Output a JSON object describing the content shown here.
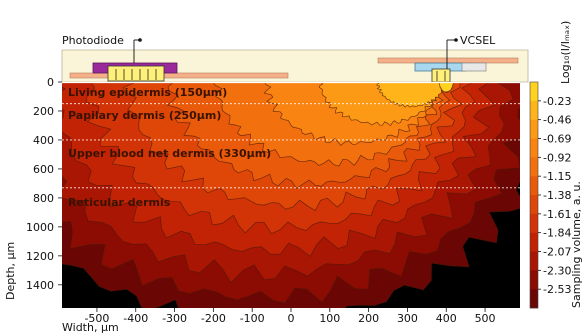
{
  "figure": {
    "device_labels": {
      "photodiode": "Photodiode",
      "vcsel": "VCSEL"
    },
    "layers": [
      {
        "name": "Living epidermis (150µm)",
        "depth_um": 150
      },
      {
        "name": "Papilary dermis (250µm)",
        "depth_um": 400
      },
      {
        "name": "Upper blood net dermis (330µm)",
        "depth_um": 730
      },
      {
        "name": "Reticular dermis",
        "depth_um": null
      }
    ]
  },
  "chart_data": {
    "type": "heatmap",
    "xlabel": "Width, µm",
    "ylabel": "Depth, µm",
    "xlim": [
      -590,
      590
    ],
    "ylim": [
      0,
      1560
    ],
    "x_ticks": [
      -500,
      -400,
      -300,
      -200,
      -100,
      0,
      100,
      200,
      300,
      400,
      500
    ],
    "y_ticks": [
      0,
      200,
      400,
      600,
      800,
      1000,
      1200,
      1400
    ],
    "colorbar": {
      "title": "Log₁₀(I/Iₘₐₓ)",
      "label": "Sampling volume, a. u.",
      "ticks": [
        "-0.23",
        "-0.46",
        "-0.69",
        "-0.92",
        "-1.15",
        "-1.38",
        "-1.61",
        "-1.84",
        "-2.07",
        "-2.30",
        "-2.53"
      ],
      "colors": [
        "#ffd21f",
        "#ffb419",
        "#fd9a15",
        "#f98412",
        "#f2700e",
        "#e95b0b",
        "#df4709",
        "#d23407",
        "#c22305",
        "#aa1604",
        "#8c0c03",
        "#6a0603"
      ]
    },
    "source_x_um": 400,
    "detector_x_um": -380,
    "grid": false
  }
}
